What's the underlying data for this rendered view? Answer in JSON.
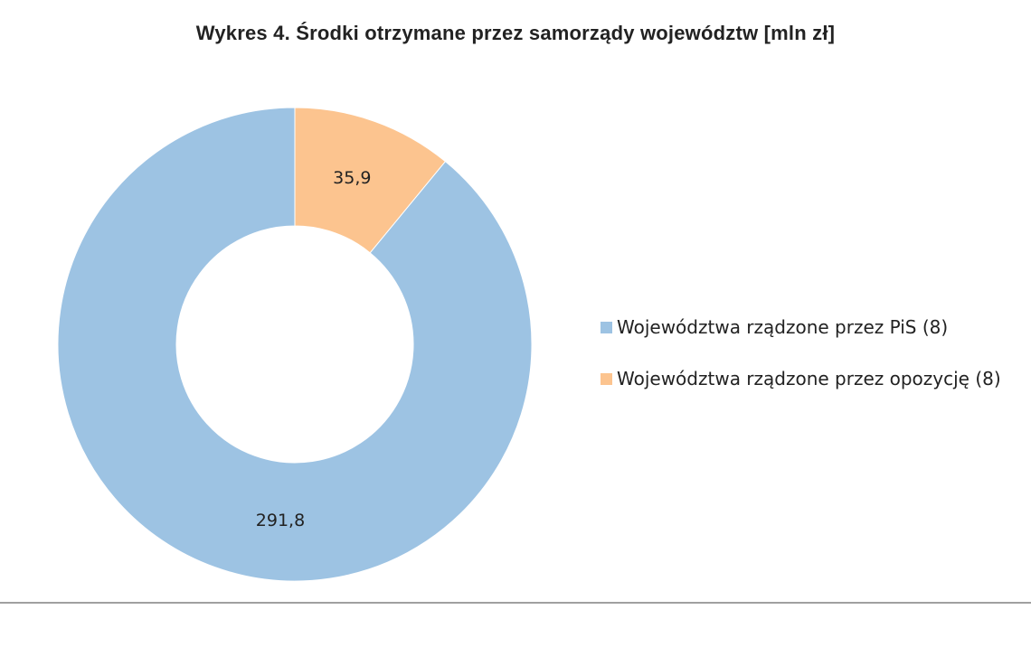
{
  "chart_data": {
    "type": "pie",
    "subtype": "donut",
    "title": "Wykres 4. Środki otrzymane przez samorządy województw [mln zł]",
    "categories": [
      "Województwa rządzone przez PiS (8)",
      "Województwa rządzone przez opozycję (8)"
    ],
    "values": [
      291.8,
      35.9
    ],
    "value_labels": [
      "291,8",
      "35,9"
    ],
    "colors": [
      "#9dc3e3",
      "#fcc48f"
    ],
    "unit": "mln zł",
    "legend_position": "right"
  },
  "title": "Wykres 4. Środki otrzymane przez samorządy województw [mln zł]",
  "legend": [
    {
      "label": "Województwa rządzone przez PiS (8)",
      "color": "#9dc3e3"
    },
    {
      "label": "Województwa rządzone przez opozycję (8)",
      "color": "#fcc48f"
    }
  ],
  "labels": {
    "pis_value": "291,8",
    "opposition_value": "35,9"
  }
}
